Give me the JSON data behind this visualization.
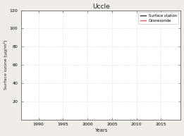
{
  "title": "Uccle",
  "xlabel": "Years",
  "ylabel": "Surface ozone [μg/m²]",
  "ylim": [
    0,
    120
  ],
  "xlim": [
    1986.5,
    2019.0
  ],
  "xticks": [
    1990,
    1995,
    2000,
    2005,
    2010,
    2015
  ],
  "yticks": [
    20,
    40,
    60,
    80,
    100,
    120
  ],
  "legend_labels": [
    "Surface station",
    "Ozonesonde"
  ],
  "legend_colors": [
    "#333333",
    "#ff5555"
  ],
  "surface_color": "#333333",
  "ozonesonde_color": "#ff7777",
  "background_color": "#ffffff",
  "fig_facecolor": "#f0ede8",
  "seed": 42
}
